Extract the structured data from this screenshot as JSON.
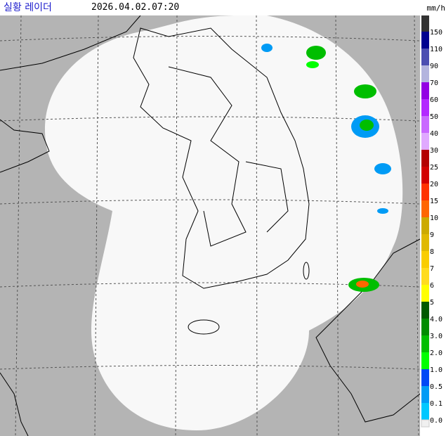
{
  "header": {
    "title": "실황 레이더",
    "timestamp": "2026.04.02.07:20",
    "unit": "mm/h"
  },
  "legend": {
    "top_color": "#333333",
    "bottom_color": "#f0f0f0",
    "items": [
      {
        "label": "150",
        "color": "#000390"
      },
      {
        "label": "110",
        "color": "#4c4eb1"
      },
      {
        "label": "90",
        "color": "#b3b4de"
      },
      {
        "label": "70",
        "color": "#9300e4"
      },
      {
        "label": "60",
        "color": "#b329ff"
      },
      {
        "label": "50",
        "color": "#c969ff"
      },
      {
        "label": "40",
        "color": "#e0a9ff"
      },
      {
        "label": "30",
        "color": "#b40000"
      },
      {
        "label": "25",
        "color": "#d20000"
      },
      {
        "label": "20",
        "color": "#ff3200"
      },
      {
        "label": "15",
        "color": "#ff6600"
      },
      {
        "label": "10",
        "color": "#ccaa00"
      },
      {
        "label": "9",
        "color": "#e0b900"
      },
      {
        "label": "8",
        "color": "#f9cd00"
      },
      {
        "label": "7",
        "color": "#ffdc1f"
      },
      {
        "label": "6",
        "color": "#ffff00"
      },
      {
        "label": "5",
        "color": "#005a00"
      },
      {
        "label": "4.0",
        "color": "#008c00"
      },
      {
        "label": "3.0",
        "color": "#00be00"
      },
      {
        "label": "2.0",
        "color": "#00ff00"
      },
      {
        "label": "1.0",
        "color": "#0049f5"
      },
      {
        "label": "0.5",
        "color": "#009bf5"
      },
      {
        "label": "0.1",
        "color": "#00c8ff"
      },
      {
        "label": "0.0",
        "color": "#f0f0f0"
      }
    ]
  }
}
